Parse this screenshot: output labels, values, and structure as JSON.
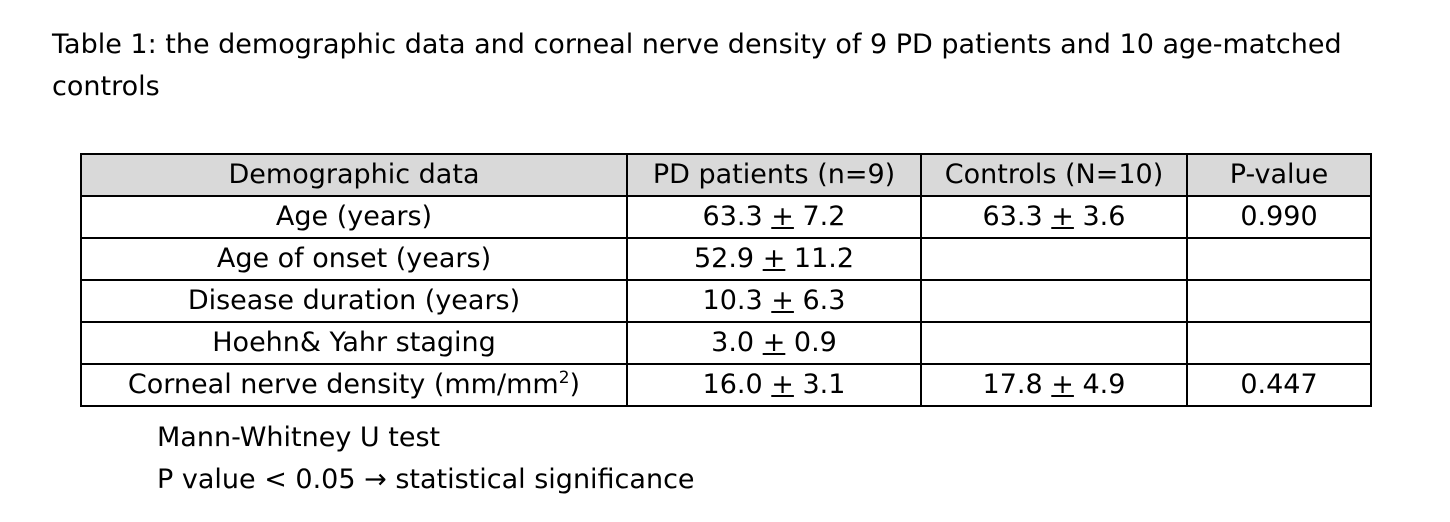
{
  "caption": "Table 1: the demographic data and corneal nerve density of 9 PD patients and 10 age-matched controls",
  "table": {
    "headers": [
      "Demographic data",
      "PD patients (n=9)",
      "Controls (N=10)",
      "P-value"
    ],
    "rows": [
      {
        "label": "Age (years)",
        "pd_mean": "63.3",
        "pd_sd": "7.2",
        "ctrl_mean": "63.3",
        "ctrl_sd": "3.6",
        "p": "0.990"
      },
      {
        "label": "Age of onset (years)",
        "pd_mean": "52.9",
        "pd_sd": "11.2",
        "ctrl_mean": "",
        "ctrl_sd": "",
        "p": ""
      },
      {
        "label": "Disease duration (years)",
        "pd_mean": "10.3",
        "pd_sd": "6.3",
        "ctrl_mean": "",
        "ctrl_sd": "",
        "p": ""
      },
      {
        "label": "Hoehn& Yahr staging",
        "pd_mean": "3.0",
        "pd_sd": "0.9",
        "ctrl_mean": "",
        "ctrl_sd": "",
        "p": ""
      },
      {
        "label": "Corneal nerve density (mm/mm",
        "label_sup": "2",
        "label_suffix": ")",
        "pd_mean": "16.0",
        "pd_sd": "3.1",
        "ctrl_mean": "17.8",
        "ctrl_sd": "4.9",
        "p": "0.447"
      }
    ],
    "pm_symbol": "+"
  },
  "notes": {
    "line1": "Mann-Whitney U test",
    "line2_prefix": "P value < 0.05 ",
    "line2_arrow": "→",
    "line2_suffix": " statistical significance"
  }
}
